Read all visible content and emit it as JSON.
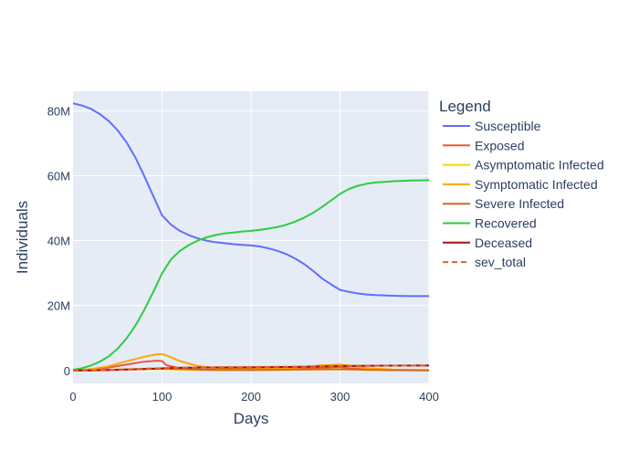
{
  "chart_data": {
    "type": "line",
    "xlabel": "Days",
    "ylabel": "Individuals",
    "xlim": [
      0,
      400
    ],
    "ylim": [
      -4000000,
      86000000
    ],
    "x_ticks": [
      0,
      100,
      200,
      300,
      400
    ],
    "x_tick_labels": [
      "0",
      "100",
      "200",
      "300",
      "400"
    ],
    "y_ticks": [
      0,
      20000000,
      40000000,
      60000000,
      80000000
    ],
    "y_tick_labels": [
      "0",
      "20M",
      "40M",
      "60M",
      "80M"
    ],
    "grid": true,
    "legend": {
      "title": "Legend",
      "position": "right"
    },
    "series": [
      {
        "name": "Susceptible",
        "color": "#636efa",
        "dash": false,
        "x": [
          0,
          10,
          20,
          30,
          40,
          50,
          60,
          70,
          80,
          90,
          100,
          110,
          120,
          130,
          140,
          150,
          160,
          170,
          180,
          190,
          200,
          210,
          220,
          230,
          240,
          250,
          260,
          270,
          280,
          290,
          300,
          310,
          320,
          330,
          340,
          350,
          360,
          370,
          380,
          390,
          400
        ],
        "y": [
          82300000,
          81600000,
          80600000,
          79000000,
          76900000,
          74000000,
          70300000,
          65600000,
          59900000,
          53800000,
          47800000,
          44900000,
          43000000,
          41700000,
          40700000,
          40000000,
          39500000,
          39200000,
          38900000,
          38700000,
          38500000,
          38200000,
          37600000,
          36800000,
          35800000,
          34400000,
          32700000,
          30600000,
          28300000,
          26500000,
          24800000,
          24200000,
          23700000,
          23400000,
          23200000,
          23100000,
          23000000,
          22950000,
          22900000,
          22900000,
          22900000
        ]
      },
      {
        "name": "Exposed",
        "color": "#ef553b",
        "dash": false,
        "x": [
          0,
          20,
          40,
          60,
          80,
          95,
          100,
          105,
          120,
          140,
          160,
          200,
          250,
          290,
          300,
          310,
          330,
          360,
          400
        ],
        "y": [
          0,
          300000,
          900000,
          1800000,
          2700000,
          3000000,
          2900000,
          1600000,
          700000,
          300000,
          200000,
          200000,
          500000,
          1000000,
          1100000,
          700000,
          300000,
          100000,
          50000
        ]
      },
      {
        "name": "Asymptomatic Infected",
        "color": "#f5d800",
        "dash": false,
        "x": [
          0,
          20,
          40,
          60,
          80,
          100,
          120,
          140,
          160,
          200,
          250,
          300,
          330,
          360,
          400
        ],
        "y": [
          0,
          60000,
          180000,
          350000,
          450000,
          400000,
          200000,
          100000,
          50000,
          50000,
          200000,
          300000,
          150000,
          60000,
          30000
        ]
      },
      {
        "name": "Symptomatic Infected",
        "color": "#ffa500",
        "dash": false,
        "x": [
          0,
          20,
          40,
          60,
          80,
          95,
          100,
          105,
          120,
          140,
          160,
          200,
          250,
          280,
          300,
          310,
          330,
          360,
          400
        ],
        "y": [
          0,
          400000,
          1300000,
          2800000,
          4200000,
          5000000,
          5000000,
          4600000,
          2900000,
          1400000,
          600000,
          400000,
          900000,
          1600000,
          1800000,
          1500000,
          700000,
          250000,
          100000
        ]
      },
      {
        "name": "Severe Infected",
        "color": "#d2691e",
        "dash": false,
        "x": [
          0,
          20,
          40,
          60,
          80,
          100,
          120,
          140,
          160,
          200,
          250,
          300,
          330,
          360,
          400
        ],
        "y": [
          0,
          50000,
          150000,
          300000,
          450000,
          550000,
          450000,
          250000,
          150000,
          100000,
          250000,
          400000,
          200000,
          80000,
          30000
        ]
      },
      {
        "name": "Recovered",
        "color": "#2ecc40",
        "dash": false,
        "x": [
          0,
          10,
          20,
          30,
          40,
          50,
          60,
          70,
          80,
          90,
          100,
          110,
          120,
          130,
          140,
          150,
          160,
          170,
          180,
          190,
          200,
          210,
          220,
          230,
          240,
          250,
          260,
          270,
          280,
          290,
          300,
          310,
          320,
          330,
          340,
          350,
          360,
          370,
          380,
          390,
          400
        ],
        "y": [
          200000,
          700000,
          1500000,
          2700000,
          4300000,
          6700000,
          9800000,
          13800000,
          18600000,
          24100000,
          29900000,
          34200000,
          36800000,
          38600000,
          40000000,
          41000000,
          41700000,
          42200000,
          42500000,
          42800000,
          43000000,
          43300000,
          43700000,
          44200000,
          44900000,
          45900000,
          47100000,
          48600000,
          50400000,
          52400000,
          54400000,
          55900000,
          56900000,
          57500000,
          57900000,
          58100000,
          58300000,
          58400000,
          58500000,
          58550000,
          58600000
        ]
      },
      {
        "name": "Deceased",
        "color": "#a50f15",
        "dash": false,
        "x": [
          0,
          20,
          40,
          60,
          80,
          100,
          120,
          140,
          160,
          200,
          250,
          290,
          300,
          320,
          340,
          360,
          400
        ],
        "y": [
          0,
          30000,
          100000,
          250000,
          450000,
          650000,
          800000,
          880000,
          920000,
          960000,
          1080000,
          1250000,
          1350000,
          1420000,
          1460000,
          1480000,
          1500000
        ]
      },
      {
        "name": "sev_total",
        "color": "#e0642a",
        "dash": true,
        "x": [
          0,
          20,
          40,
          60,
          80,
          100,
          120,
          140,
          160,
          200,
          250,
          290,
          300,
          320,
          340,
          360,
          400
        ],
        "y": [
          0,
          60000,
          180000,
          350000,
          550000,
          700000,
          800000,
          900000,
          1000000,
          1050000,
          1150000,
          1300000,
          1350000,
          1420000,
          1460000,
          1480000,
          1500000
        ]
      }
    ]
  }
}
